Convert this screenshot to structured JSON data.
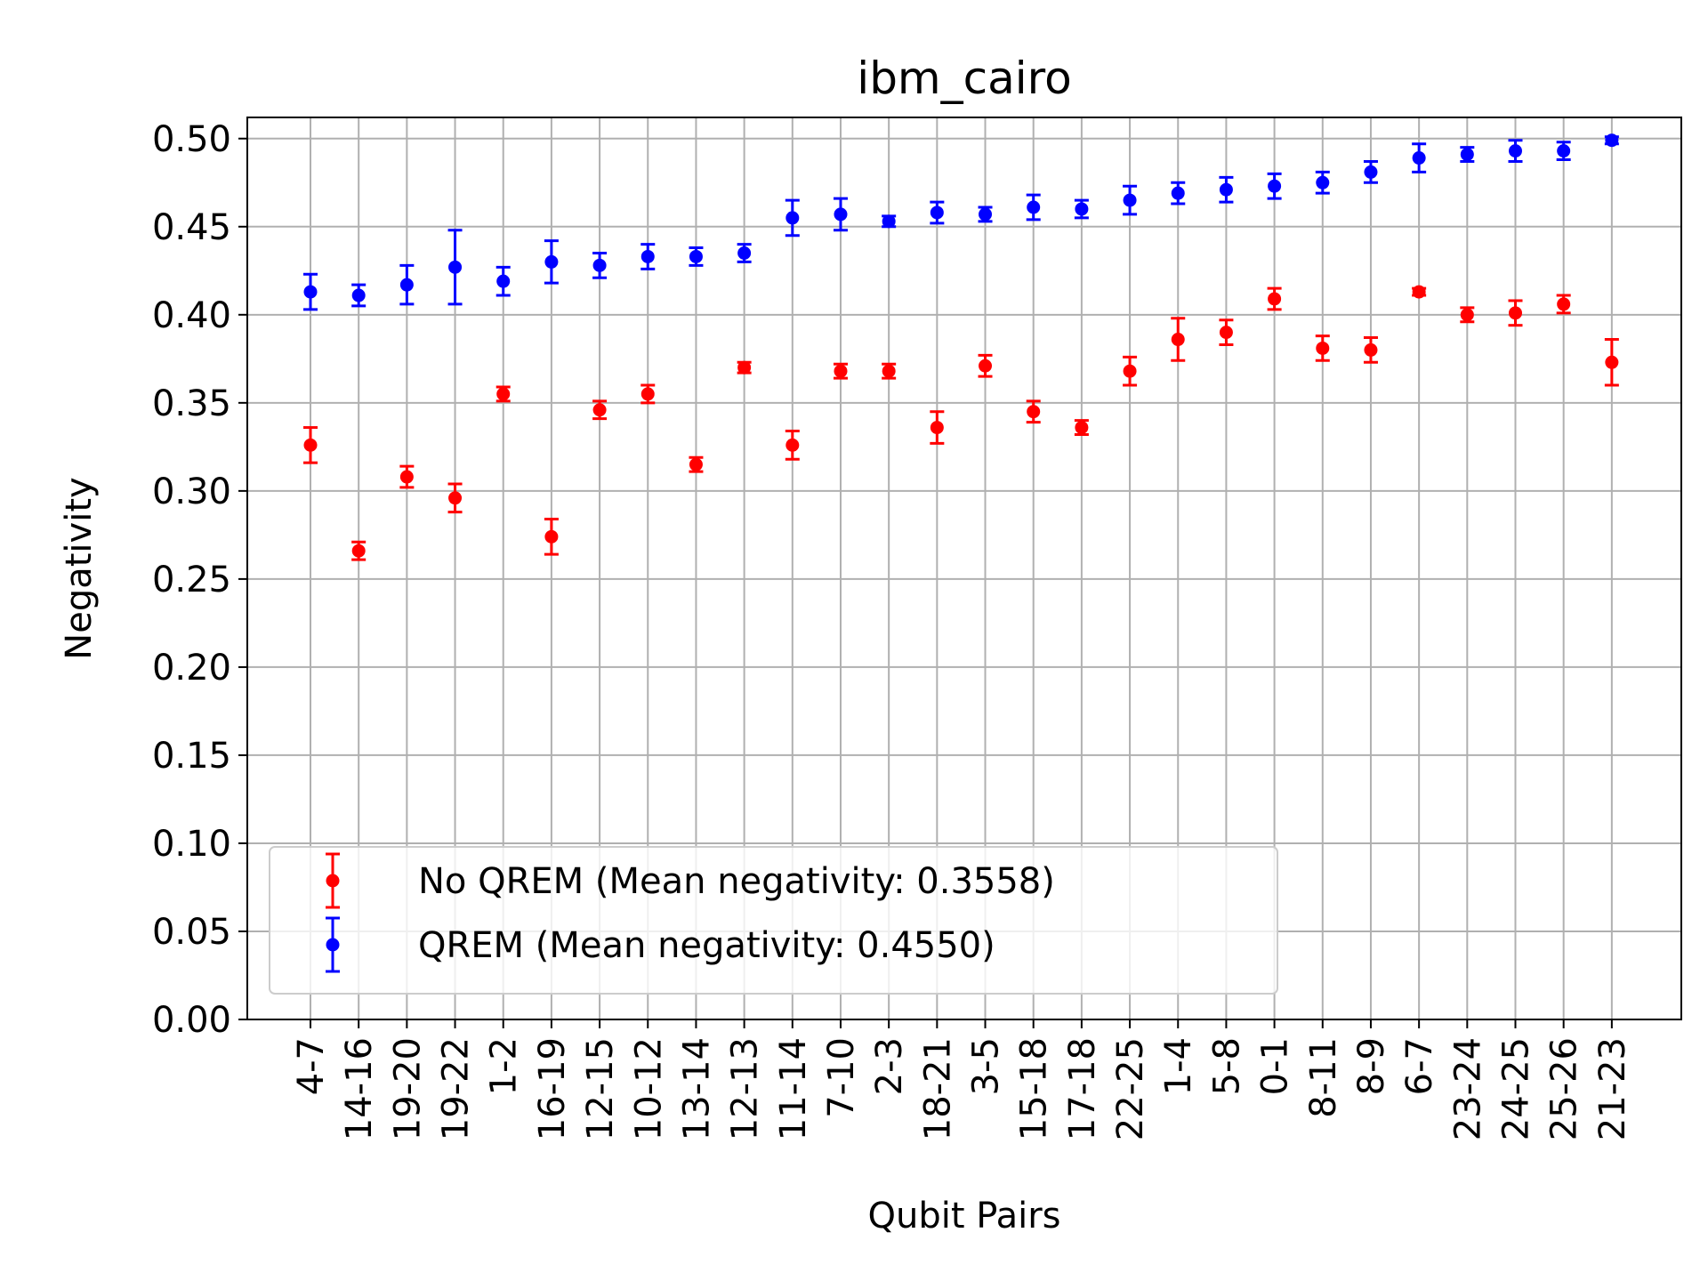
{
  "chart_data": {
    "type": "scatter",
    "title": "ibm_cairo",
    "xlabel": "Qubit Pairs",
    "ylabel": "Negativity",
    "ylim": [
      0.0,
      0.512
    ],
    "yticks": [
      "0.00",
      "0.05",
      "0.10",
      "0.15",
      "0.20",
      "0.25",
      "0.30",
      "0.35",
      "0.40",
      "0.45",
      "0.50"
    ],
    "grid": true,
    "legend_position": "lower-left",
    "categories": [
      "4-7",
      "14-16",
      "19-20",
      "19-22",
      "1-2",
      "16-19",
      "12-15",
      "10-12",
      "13-14",
      "12-13",
      "11-14",
      "7-10",
      "2-3",
      "18-21",
      "3-5",
      "15-18",
      "17-18",
      "22-25",
      "1-4",
      "5-8",
      "0-1",
      "8-11",
      "8-9",
      "6-7",
      "23-24",
      "24-25",
      "25-26",
      "21-23"
    ],
    "series": [
      {
        "name": "No QREM (Mean negativity: 0.3558)",
        "color": "#ff0000",
        "values": [
          0.326,
          0.266,
          0.308,
          0.296,
          0.355,
          0.274,
          0.346,
          0.355,
          0.315,
          0.37,
          0.326,
          0.368,
          0.368,
          0.336,
          0.371,
          0.345,
          0.336,
          0.368,
          0.386,
          0.39,
          0.409,
          0.381,
          0.38,
          0.413,
          0.4,
          0.401,
          0.406,
          0.373
        ],
        "errors": [
          0.01,
          0.005,
          0.006,
          0.008,
          0.004,
          0.01,
          0.005,
          0.005,
          0.004,
          0.003,
          0.008,
          0.004,
          0.004,
          0.009,
          0.006,
          0.006,
          0.004,
          0.008,
          0.012,
          0.007,
          0.006,
          0.007,
          0.007,
          0.002,
          0.004,
          0.007,
          0.005,
          0.013
        ]
      },
      {
        "name": "QREM (Mean negativity: 0.4550)",
        "color": "#0000ff",
        "values": [
          0.413,
          0.411,
          0.417,
          0.427,
          0.419,
          0.43,
          0.428,
          0.433,
          0.433,
          0.435,
          0.455,
          0.457,
          0.453,
          0.458,
          0.457,
          0.461,
          0.46,
          0.465,
          0.469,
          0.471,
          0.473,
          0.475,
          0.481,
          0.489,
          0.491,
          0.493,
          0.493,
          0.499
        ],
        "errors": [
          0.01,
          0.006,
          0.011,
          0.021,
          0.008,
          0.012,
          0.007,
          0.007,
          0.005,
          0.005,
          0.01,
          0.009,
          0.003,
          0.006,
          0.004,
          0.007,
          0.005,
          0.008,
          0.006,
          0.007,
          0.007,
          0.006,
          0.006,
          0.008,
          0.004,
          0.006,
          0.005,
          0.002
        ]
      }
    ]
  }
}
